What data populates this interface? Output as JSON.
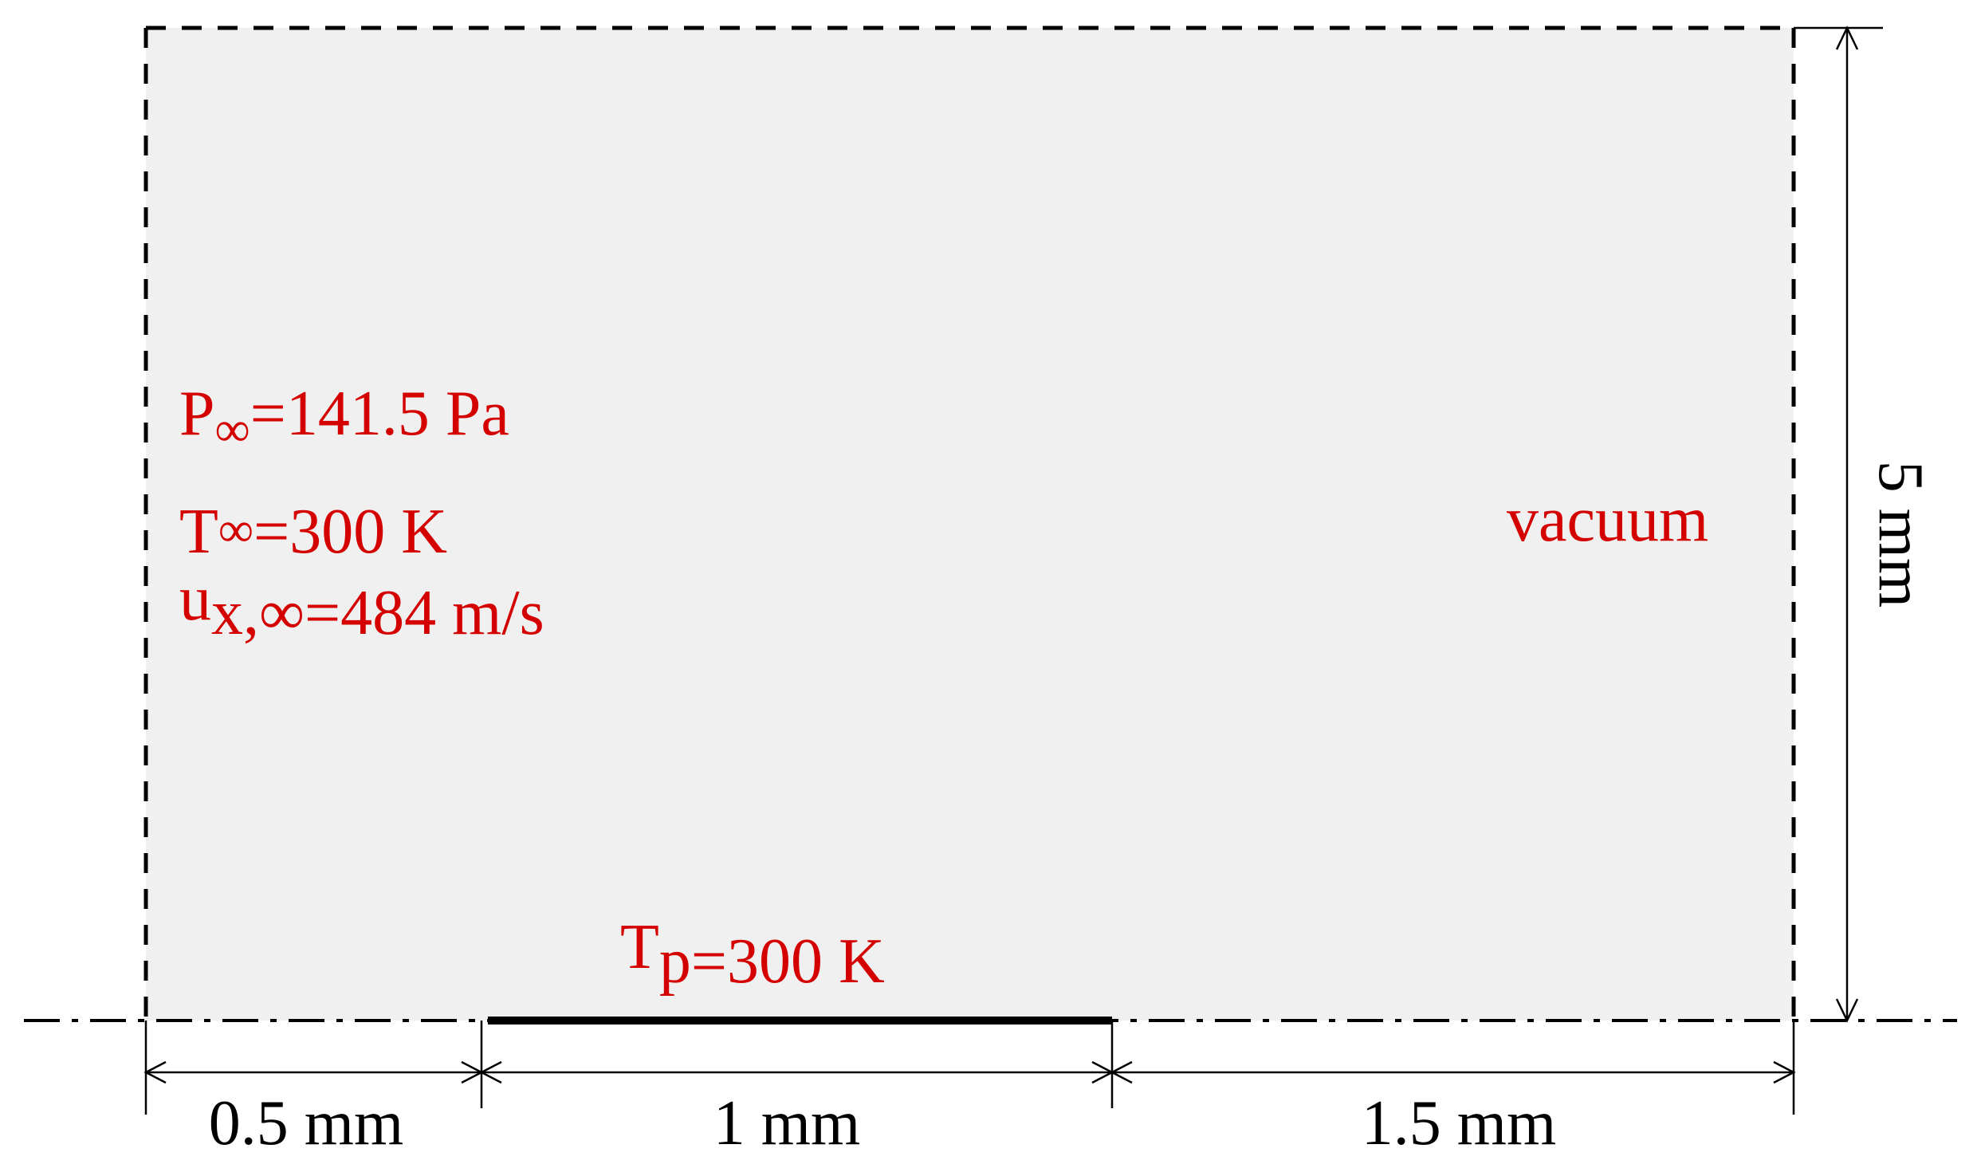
{
  "colors": {
    "domain_fill": "#f0f0f0",
    "label_color": "#d40000",
    "line_color": "#000000"
  },
  "inflow": {
    "pressure": {
      "main": "P",
      "sub": "∞",
      "value": "=141.5 Pa"
    },
    "temperature": {
      "main": "T",
      "sub": "∞",
      "value": "=300 K"
    },
    "velocity": {
      "main": "u",
      "sub": "x,∞",
      "value": "=484 m/s"
    }
  },
  "outflow_label": "vacuum",
  "plate": {
    "main": "T",
    "sub": "p",
    "value": "=300 K"
  },
  "dimensions": {
    "upstream": "0.5 mm",
    "plate_length": "1 mm",
    "downstream": "1.5 mm",
    "height": "5 mm"
  }
}
